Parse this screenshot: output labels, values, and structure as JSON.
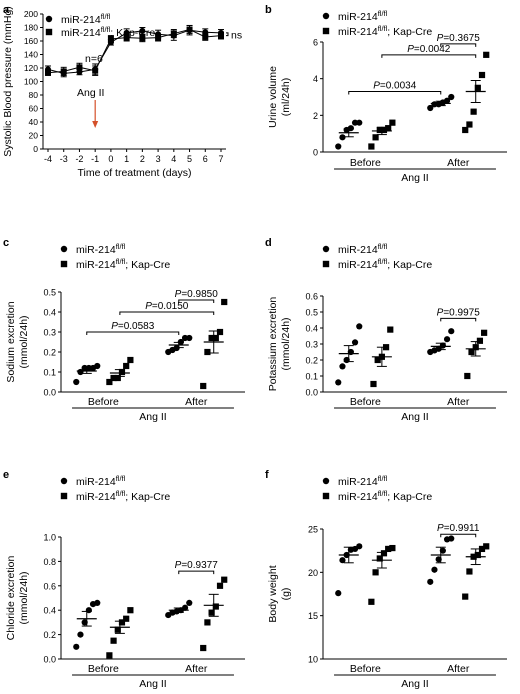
{
  "chart_data": [
    {
      "id": "a",
      "panel": "a",
      "type": "line",
      "ylabel": "Systolic Blood pressure (mmHg)",
      "xlabel": "Time of treatment (days)",
      "x": [
        -4,
        -3,
        -2,
        -1,
        0,
        1,
        2,
        3,
        4,
        5,
        6,
        7
      ],
      "xticks": [
        "-4",
        "-3",
        "-2",
        "-1",
        "0",
        "1",
        "2",
        "3",
        "4",
        "5",
        "6",
        "7"
      ],
      "ylim": [
        0,
        200
      ],
      "yticks": [
        "0",
        "20",
        "40",
        "60",
        "80",
        "100",
        "120",
        "140",
        "160",
        "180",
        "200"
      ],
      "series": [
        {
          "name": "miR-214fl/fl",
          "marker": "circle",
          "values": [
            118,
            112,
            114,
            118,
            158,
            172,
            175,
            170,
            168,
            176,
            173,
            172
          ],
          "errors": [
            5,
            5,
            4,
            8,
            4,
            6,
            5,
            6,
            7,
            7,
            5,
            5
          ]
        },
        {
          "name": "miR-214fl/fl; Kap-Cre",
          "marker": "square",
          "values": [
            113,
            115,
            121,
            116,
            163,
            165,
            164,
            165,
            171,
            177,
            166,
            168
          ],
          "errors": [
            4,
            6,
            6,
            7,
            5,
            5,
            5,
            5,
            6,
            6,
            5,
            5
          ]
        }
      ],
      "annotations": [
        "n=6",
        "Ang II",
        "ns"
      ]
    },
    {
      "id": "b",
      "panel": "b",
      "type": "scatter",
      "ylabel": "Urine volume (ml/24h)",
      "group_label": "Ang II",
      "categories": [
        "Before",
        "After"
      ],
      "ylim": [
        0,
        6
      ],
      "yticks": [
        "0",
        "2",
        "4",
        "6"
      ],
      "series": [
        {
          "name": "miR-214fl/fl",
          "marker": "circle",
          "groups": [
            {
              "points": [
                0.3,
                0.8,
                1.2,
                1.3,
                1.6,
                1.6
              ],
              "mean": 1.05,
              "sem": 0.22
            },
            {
              "points": [
                2.4,
                2.6,
                2.6,
                2.7,
                2.8,
                3.0
              ],
              "mean": 2.65,
              "sem": 0.12
            }
          ]
        },
        {
          "name": "miR-214fl/fl; Kap-Cre",
          "marker": "square",
          "groups": [
            {
              "points": [
                0.3,
                0.8,
                1.2,
                1.2,
                1.3,
                1.6
              ],
              "mean": 1.15,
              "sem": 0.2
            },
            {
              "points": [
                1.2,
                1.5,
                2.2,
                3.5,
                4.2,
                5.3
              ],
              "mean": 3.3,
              "sem": 0.6
            }
          ]
        }
      ],
      "comparisons": [
        {
          "label": "P=0.0034",
          "from": [
            0,
            0
          ],
          "to": [
            1,
            0
          ],
          "y": 3.3
        },
        {
          "label": "P=0.0042",
          "from": [
            0,
            1
          ],
          "to": [
            1,
            1
          ],
          "y": 5.3
        },
        {
          "label": "P=0.3675",
          "from": [
            1,
            0
          ],
          "to": [
            1,
            1
          ],
          "y": 5.9
        }
      ]
    },
    {
      "id": "c",
      "panel": "c",
      "type": "scatter",
      "ylabel": "Sodium excretion (mmol/24h)",
      "group_label": "Ang II",
      "categories": [
        "Before",
        "After"
      ],
      "ylim": [
        0,
        0.5
      ],
      "yticks": [
        "0.0",
        "0.1",
        "0.2",
        "0.3",
        "0.4",
        "0.5"
      ],
      "series": [
        {
          "name": "miR-214fl/fl",
          "marker": "circle",
          "groups": [
            {
              "points": [
                0.05,
                0.1,
                0.12,
                0.12,
                0.12,
                0.13
              ],
              "mean": 0.105,
              "sem": 0.012
            },
            {
              "points": [
                0.2,
                0.21,
                0.22,
                0.25,
                0.27,
                0.27
              ],
              "mean": 0.235,
              "sem": 0.013
            }
          ]
        },
        {
          "name": "miR-214fl/fl; Kap-Cre",
          "marker": "square",
          "groups": [
            {
              "points": [
                0.05,
                0.07,
                0.07,
                0.1,
                0.13,
                0.16
              ],
              "mean": 0.095,
              "sem": 0.017
            },
            {
              "points": [
                0.03,
                0.2,
                0.27,
                0.27,
                0.3,
                0.45
              ],
              "mean": 0.25,
              "sem": 0.055
            }
          ]
        }
      ],
      "comparisons": [
        {
          "label": "P=0.0583",
          "from": [
            0,
            0
          ],
          "to": [
            1,
            0
          ],
          "y": 0.3
        },
        {
          "label": "P=0.0150",
          "from": [
            0,
            1
          ],
          "to": [
            1,
            1
          ],
          "y": 0.4
        },
        {
          "label": "P=0.9850",
          "from": [
            1,
            0
          ],
          "to": [
            1,
            1
          ],
          "y": 0.46
        }
      ]
    },
    {
      "id": "d",
      "panel": "d",
      "type": "scatter",
      "ylabel": "Potassium excretion (mmol/24h)",
      "group_label": "Ang II",
      "categories": [
        "Before",
        "After"
      ],
      "ylim": [
        0,
        0.6
      ],
      "yticks": [
        "0.0",
        "0.1",
        "0.2",
        "0.3",
        "0.4",
        "0.5",
        "0.6"
      ],
      "series": [
        {
          "name": "miR-214fl/fl",
          "marker": "circle",
          "groups": [
            {
              "points": [
                0.06,
                0.16,
                0.2,
                0.25,
                0.31,
                0.41
              ],
              "mean": 0.24,
              "sem": 0.05
            },
            {
              "points": [
                0.25,
                0.26,
                0.27,
                0.29,
                0.33,
                0.38
              ],
              "mean": 0.285,
              "sem": 0.02
            }
          ]
        },
        {
          "name": "miR-214fl/fl; Kap-Cre",
          "marker": "square",
          "groups": [
            {
              "points": [
                0.05,
                0.2,
                0.22,
                0.28,
                0.39
              ],
              "mean": 0.22,
              "sem": 0.06
            },
            {
              "points": [
                0.1,
                0.25,
                0.28,
                0.32,
                0.37
              ],
              "mean": 0.27,
              "sem": 0.045
            }
          ]
        }
      ],
      "comparisons": [
        {
          "label": "P=0.9975",
          "from": [
            1,
            0
          ],
          "to": [
            1,
            1
          ],
          "y": 0.46
        }
      ]
    },
    {
      "id": "e",
      "panel": "e",
      "type": "scatter",
      "ylabel": "Chloride excretion (mmol/24h)",
      "group_label": "Ang II",
      "categories": [
        "Before",
        "After"
      ],
      "ylim": [
        0,
        1.0
      ],
      "yticks": [
        "0.0",
        "0.2",
        "0.4",
        "0.6",
        "0.8",
        "1.0"
      ],
      "series": [
        {
          "name": "miR-214fl/fl",
          "marker": "circle",
          "groups": [
            {
              "points": [
                0.1,
                0.2,
                0.3,
                0.4,
                0.45,
                0.46
              ],
              "mean": 0.33,
              "sem": 0.06
            },
            {
              "points": [
                0.36,
                0.38,
                0.39,
                0.4,
                0.42,
                0.46
              ],
              "mean": 0.4,
              "sem": 0.018
            }
          ]
        },
        {
          "name": "miR-214fl/fl; Kap-Cre",
          "marker": "square",
          "groups": [
            {
              "points": [
                0.03,
                0.15,
                0.24,
                0.3,
                0.33,
                0.4
              ],
              "mean": 0.26,
              "sem": 0.05
            },
            {
              "points": [
                0.09,
                0.3,
                0.38,
                0.43,
                0.6,
                0.65
              ],
              "mean": 0.44,
              "sem": 0.09
            }
          ]
        }
      ],
      "comparisons": [
        {
          "label": "P=0.9377",
          "from": [
            1,
            0
          ],
          "to": [
            1,
            1
          ],
          "y": 0.72
        }
      ]
    },
    {
      "id": "f",
      "panel": "f",
      "type": "scatter",
      "ylabel": "Body weight (g)",
      "group_label": "Ang II",
      "categories": [
        "Before",
        "After"
      ],
      "ylim": [
        10,
        25
      ],
      "yticks": [
        "10",
        "15",
        "20",
        "25"
      ],
      "series": [
        {
          "name": "miR-214fl/fl",
          "marker": "circle",
          "groups": [
            {
              "points": [
                17.6,
                21.4,
                22,
                22.6,
                22.7,
                23
              ],
              "mean": 22,
              "sem": 0.9
            },
            {
              "points": [
                18.9,
                20.3,
                21.5,
                22.5,
                23.8,
                23.9
              ],
              "mean": 22,
              "sem": 0.9
            }
          ]
        },
        {
          "name": "miR-214fl/fl; Kap-Cre",
          "marker": "square",
          "groups": [
            {
              "points": [
                16.6,
                20,
                21.6,
                22.2,
                22.7,
                22.8
              ],
              "mean": 21.4,
              "sem": 0.9
            },
            {
              "points": [
                17.2,
                20.1,
                21.8,
                22,
                22.7,
                23
              ],
              "mean": 21.8,
              "sem": 0.9
            }
          ]
        }
      ],
      "comparisons": [
        {
          "label": "P=0.9911",
          "from": [
            1,
            0
          ],
          "to": [
            1,
            1
          ],
          "y": 24.4
        }
      ]
    }
  ],
  "legend": {
    "wt_base": "miR-214",
    "wt_sup": "fl/fl",
    "ko_base": "miR-214",
    "ko_sup": "fl/fl",
    "ko_suffix": "; Kap-Cre"
  }
}
